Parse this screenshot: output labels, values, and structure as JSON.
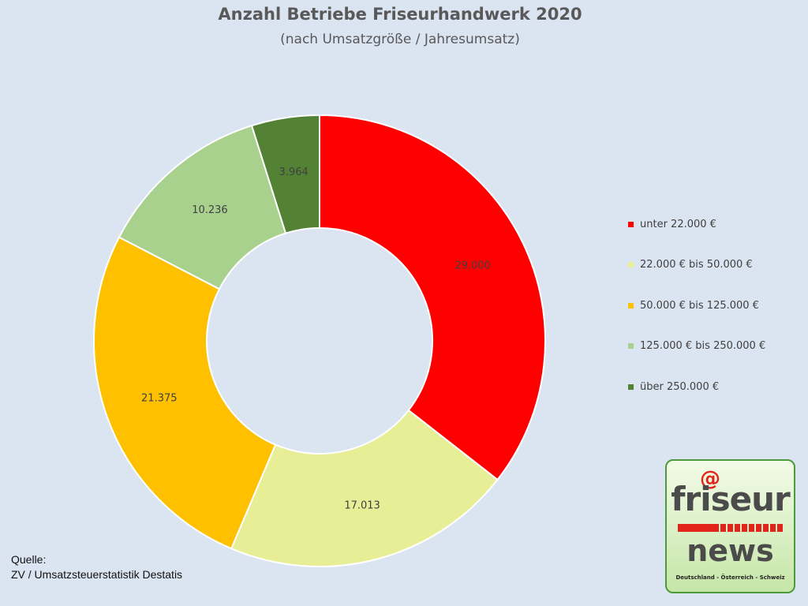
{
  "chart_data": {
    "type": "pie",
    "variant": "donut",
    "title": "Anzahl Betriebe Friseurhandwerk 2020",
    "subtitle": "(nach Umsatzgröße / Jahresumsatz)",
    "categories": [
      "unter 22.000 €",
      "22.000 € bis 50.000 €",
      "50.000 €  bis 125.000 €",
      "125.000 € bis 250.000 €",
      "über 250.000 €"
    ],
    "values": [
      29000,
      17013,
      21375,
      10236,
      3964
    ],
    "labels": [
      "29.000",
      "17.013",
      "21.375",
      "10.236",
      "3.964"
    ],
    "colors": [
      "#ff0000",
      "#e8ee96",
      "#ffc000",
      "#a9d18e",
      "#548235"
    ],
    "legend_position": "right",
    "start_angle": "top, clockwise"
  },
  "source": {
    "line1": "Quelle:",
    "line2": "ZV / Umsatzsteuerstatistik Destatis"
  },
  "logo": {
    "at": "@",
    "top": "friseur",
    "bottom": "news",
    "tagline": "Deutschland - Österreich - Schweiz"
  }
}
